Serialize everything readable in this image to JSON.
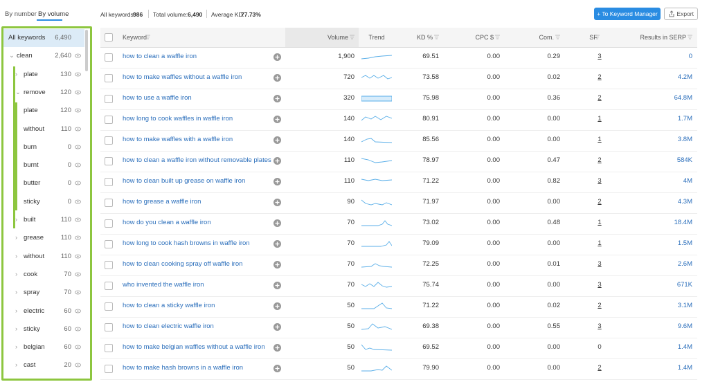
{
  "tabs": [
    "By number",
    "By volume"
  ],
  "summary": {
    "all_keywords_label": "All keywords:",
    "all_keywords": "986",
    "total_volume_label": "Total volume:",
    "total_volume": "6,490",
    "avg_kd_label": "Average KD:",
    "avg_kd": "77.73%"
  },
  "buttons": {
    "keyword_manager": "+ To Keyword Manager",
    "export": "Export"
  },
  "sidebar": {
    "items": [
      {
        "label": "All keywords",
        "count": "6,490"
      },
      {
        "label": "clean",
        "count": "2,640",
        "children": [
          {
            "label": "plate",
            "count": "130"
          },
          {
            "label": "remove",
            "count": "120",
            "children": [
              {
                "label": "plate",
                "count": "120"
              },
              {
                "label": "without",
                "count": "110"
              },
              {
                "label": "burn",
                "count": "0"
              },
              {
                "label": "burnt",
                "count": "0"
              },
              {
                "label": "butter",
                "count": "0"
              },
              {
                "label": "sticky",
                "count": "0"
              }
            ]
          },
          {
            "label": "built",
            "count": "110"
          },
          {
            "label": "grease",
            "count": "110"
          },
          {
            "label": "without",
            "count": "110"
          },
          {
            "label": "cook",
            "count": "70"
          },
          {
            "label": "spray",
            "count": "70"
          },
          {
            "label": "electric",
            "count": "60"
          },
          {
            "label": "sticky",
            "count": "60"
          },
          {
            "label": "belgian",
            "count": "60"
          },
          {
            "label": "cast",
            "count": "20"
          }
        ]
      }
    ]
  },
  "table": {
    "headers": [
      "Keyword",
      "Volume",
      "Trend",
      "KD %",
      "CPC $",
      "Com.",
      "SF",
      "Results in SERP"
    ],
    "rows": [
      [
        "how to clean a waffle iron",
        "1,900",
        "69.51",
        "0.00",
        "0.29",
        "3",
        "0"
      ],
      [
        "how to make waffles without a waffle iron",
        "720",
        "73.58",
        "0.00",
        "0.02",
        "2",
        "4.2M"
      ],
      [
        "how to use a waffle iron",
        "320",
        "75.98",
        "0.00",
        "0.36",
        "2",
        "64.8M"
      ],
      [
        "how long to cook waffles in waffle iron",
        "140",
        "80.91",
        "0.00",
        "0.00",
        "1",
        "1.7M"
      ],
      [
        "how to make waffles with a waffle iron",
        "140",
        "85.56",
        "0.00",
        "0.00",
        "1",
        "3.8M"
      ],
      [
        "how to clean a waffle iron without removable plates",
        "110",
        "78.97",
        "0.00",
        "0.47",
        "2",
        "584K"
      ],
      [
        "how to clean built up grease on waffle iron",
        "110",
        "71.22",
        "0.00",
        "0.82",
        "3",
        "4M"
      ],
      [
        "how to grease a waffle iron",
        "90",
        "71.97",
        "0.00",
        "0.00",
        "2",
        "4.3M"
      ],
      [
        "how do you clean a waffle iron",
        "70",
        "73.02",
        "0.00",
        "0.48",
        "1",
        "18.4M"
      ],
      [
        "how long to cook hash browns in waffle iron",
        "70",
        "79.09",
        "0.00",
        "0.00",
        "1",
        "1.5M"
      ],
      [
        "how to clean cooking spray off waffle iron",
        "70",
        "72.25",
        "0.00",
        "0.01",
        "3",
        "2.6M"
      ],
      [
        "who invented the waffle iron",
        "70",
        "75.74",
        "0.00",
        "0.00",
        "3",
        "671K"
      ],
      [
        "how to clean a sticky waffle iron",
        "50",
        "71.22",
        "0.00",
        "0.02",
        "2",
        "3.1M"
      ],
      [
        "how to clean electric waffle iron",
        "50",
        "69.38",
        "0.00",
        "0.55",
        "3",
        "9.6M"
      ],
      [
        "how to make belgian waffles without a waffle iron",
        "50",
        "69.52",
        "0.00",
        "0.00",
        "0",
        "1.4M"
      ],
      [
        "how to make hash browns in a waffle iron",
        "50",
        "79.90",
        "0.00",
        "0.00",
        "2",
        "1.4M"
      ]
    ]
  }
}
